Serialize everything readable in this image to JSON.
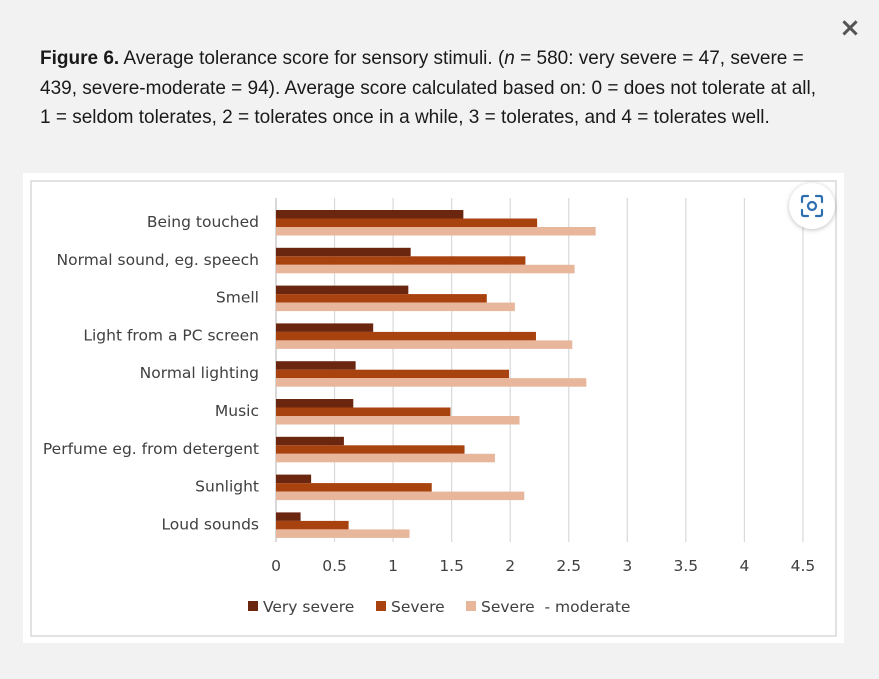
{
  "dialog": {
    "close_label": "×"
  },
  "caption": {
    "figure_label": "Figure 6.",
    "text_before_n": " Average tolerance score for sensory stimuli. (",
    "n_symbol": "n",
    "text_after_n": " = 580: very severe = 47, severe = 439, severe-moderate = 94). Average score calculated based on: 0 = does not tolerate at all, 1 = seldom tolerates, 2 = tolerates once in a while, 3 = tolerates, and 4 = tolerates well."
  },
  "icons": {
    "zoom": "focus-zoom-icon",
    "close": "close-icon"
  },
  "chart_data": {
    "type": "bar",
    "orientation": "horizontal",
    "categories": [
      "Being touched",
      "Normal sound, eg. speech",
      "Smell",
      "Light from a PC screen",
      "Normal lighting",
      "Music",
      "Perfume eg. from detergent",
      "Sunlight",
      "Loud sounds"
    ],
    "series": [
      {
        "name": "Very severe",
        "color": "#6b2610",
        "values": [
          1.6,
          1.15,
          1.13,
          0.83,
          0.68,
          0.66,
          0.58,
          0.3,
          0.21
        ]
      },
      {
        "name": "Severe",
        "color": "#a8420f",
        "values": [
          2.23,
          2.13,
          1.8,
          2.22,
          1.99,
          1.49,
          1.61,
          1.33,
          0.62
        ]
      },
      {
        "name": "Severe  - moderate",
        "color": "#e7b69b",
        "values": [
          2.73,
          2.55,
          2.04,
          2.53,
          2.65,
          2.08,
          1.87,
          2.12,
          1.14
        ]
      }
    ],
    "x_ticks": [
      "0",
      "0.5",
      "1",
      "1.5",
      "2",
      "2.5",
      "3",
      "3.5",
      "4",
      "4.5"
    ],
    "xlim": [
      0,
      4.5
    ],
    "grid": true,
    "legend_position": "bottom",
    "title": "",
    "xlabel": "",
    "ylabel": ""
  }
}
